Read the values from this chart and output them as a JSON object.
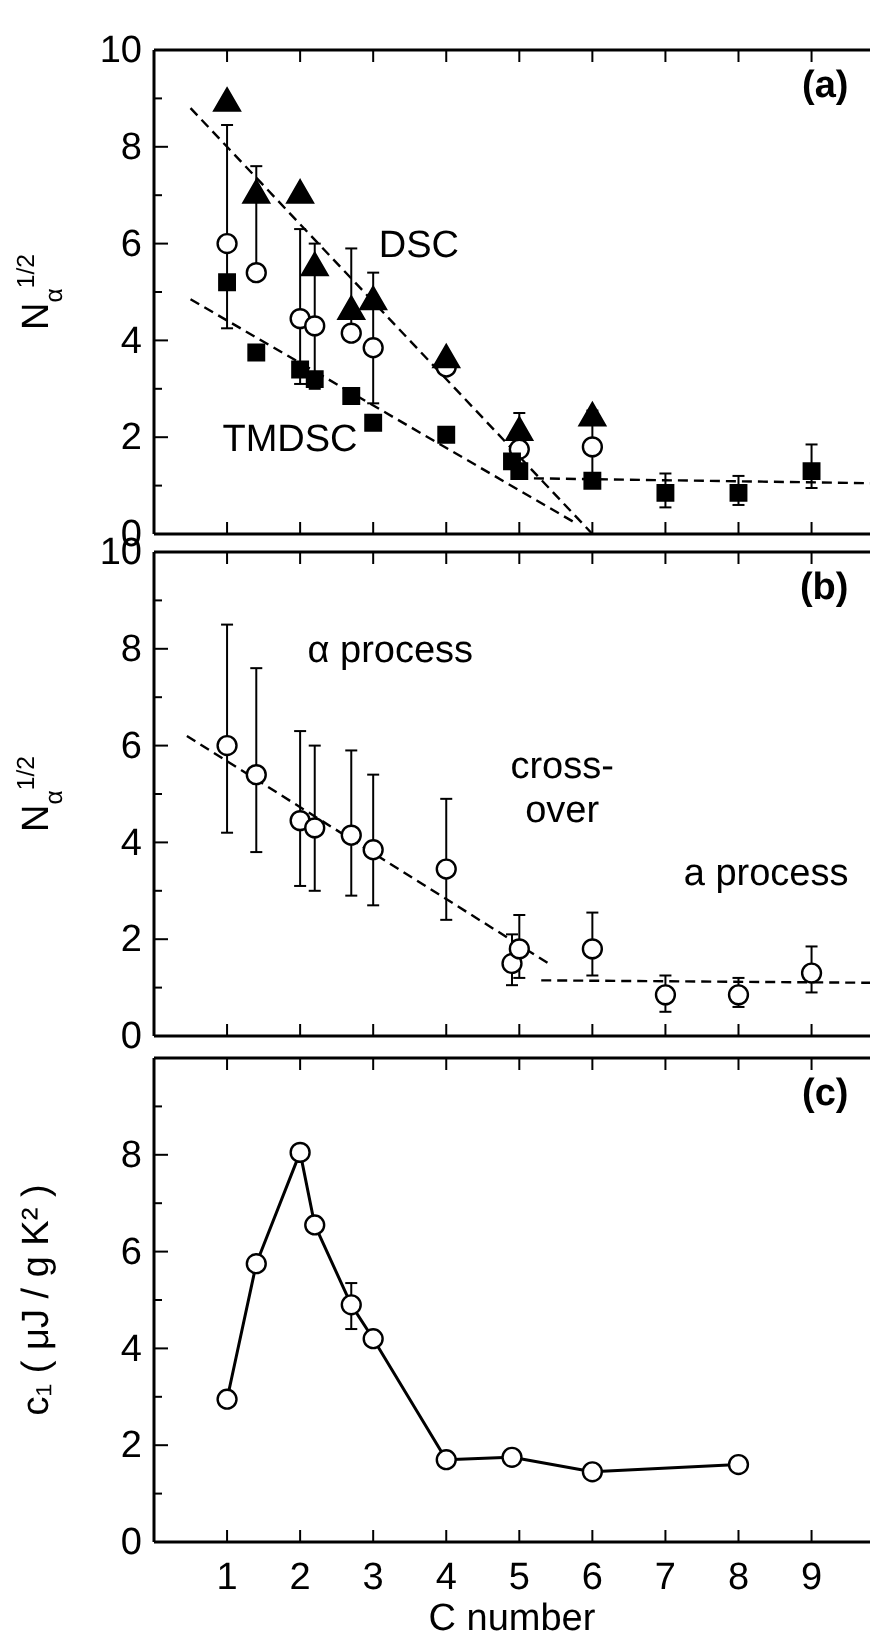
{
  "chart_data": [
    {
      "type": "scatter",
      "ylabel": "N$_{α}$$^{1/2}$",
      "xlim": [
        0,
        9.8
      ],
      "xticks": [
        1,
        2,
        3,
        4,
        5,
        6,
        7,
        8,
        9
      ],
      "ylim": [
        0,
        10
      ],
      "yticks": [
        0,
        {
          "value": 1,
          "label": null
        },
        2,
        {
          "value": 3,
          "label": null
        },
        4,
        {
          "value": 5,
          "label": null
        },
        6,
        {
          "value": 7,
          "label": null
        },
        8,
        {
          "value": 9,
          "label": null
        },
        10
      ],
      "tick_labels": "y",
      "annotations": [
        "(a)",
        "DSC",
        "TMDSC"
      ],
      "series": [
        {
          "type": "line",
          "line_style": "dashed",
          "marker": "none",
          "color": "#000000",
          "x": [
            0.5,
            6
          ],
          "values": [
            8.8,
            0
          ]
        },
        {
          "type": "line",
          "line_style": "dashed",
          "marker": "none",
          "color": "#000000",
          "x": [
            0.5,
            5.8
          ],
          "values": [
            4.85,
            0.2
          ]
        },
        {
          "type": "line",
          "line_style": "dashed",
          "marker": "none",
          "color": "#000000",
          "x": [
            5.2,
            9.8
          ],
          "values": [
            1.15,
            1.05
          ]
        },
        {
          "marker": "circle",
          "color": "#000000",
          "x": [
            1,
            1.4,
            2,
            2.2,
            2.7,
            3,
            4,
            5,
            6
          ],
          "values": [
            6.0,
            5.4,
            4.45,
            4.3,
            4.15,
            3.85,
            3.45,
            1.75,
            1.8
          ],
          "errors": [
            [
              4.25,
              8.45
            ],
            [
              5.4,
              7.6
            ],
            [
              3.1,
              6.3
            ],
            [
              3.0,
              6.0
            ],
            [
              4.15,
              5.9
            ],
            [
              2.7,
              5.4
            ],
            null,
            [
              1.2,
              2.5
            ],
            [
              1.25,
              2.55
            ]
          ]
        },
        {
          "marker": "square",
          "color": "#000000",
          "x": [
            1,
            1.4,
            2,
            2.2,
            2.7,
            3,
            4,
            4.9,
            5,
            6,
            7,
            8,
            9
          ],
          "values": [
            5.2,
            3.75,
            3.4,
            3.2,
            2.85,
            2.3,
            2.05,
            1.5,
            1.3,
            1.1,
            0.85,
            0.85,
            1.3
          ],
          "errors": [
            null,
            null,
            null,
            null,
            null,
            null,
            null,
            null,
            null,
            null,
            [
              0.55,
              1.25
            ],
            [
              0.6,
              1.2
            ],
            [
              0.95,
              1.85
            ]
          ]
        },
        {
          "marker": "triangle",
          "color": "#000000",
          "x": [
            1,
            1.4,
            2,
            2.2,
            2.7,
            3,
            4,
            5,
            6
          ],
          "values": [
            8.9,
            7.0,
            7.0,
            5.5,
            4.6,
            4.8,
            3.6,
            2.1,
            2.4
          ]
        }
      ]
    },
    {
      "type": "scatter",
      "ylabel": "N$_{α}$$^{1/2}$",
      "xlim": [
        0,
        9.8
      ],
      "xticks": [
        1,
        2,
        3,
        4,
        5,
        6,
        7,
        8,
        9
      ],
      "ylim": [
        0,
        10
      ],
      "yticks": [
        0,
        {
          "value": 1,
          "label": null
        },
        2,
        {
          "value": 3,
          "label": null
        },
        4,
        {
          "value": 5,
          "label": null
        },
        6,
        {
          "value": 7,
          "label": null
        },
        8,
        {
          "value": 9,
          "label": null
        },
        10
      ],
      "tick_labels": "y",
      "annotations": [
        "(b)",
        "α process",
        "cross-\nover",
        "a process"
      ],
      "series": [
        {
          "type": "line",
          "line_style": "dashed",
          "marker": "none",
          "color": "#000000",
          "x": [
            0.45,
            5.4
          ],
          "values": [
            6.2,
            1.5
          ]
        },
        {
          "type": "line",
          "line_style": "dashed",
          "marker": "none",
          "color": "#000000",
          "x": [
            5.3,
            9.8
          ],
          "values": [
            1.15,
            1.1
          ]
        },
        {
          "marker": "circle",
          "color": "#000000",
          "x": [
            1,
            1.4,
            2,
            2.2,
            2.7,
            3,
            4,
            4.9,
            5,
            6,
            7,
            8,
            9
          ],
          "values": [
            6.0,
            5.4,
            4.45,
            4.3,
            4.15,
            3.85,
            3.45,
            1.5,
            1.8,
            1.8,
            0.85,
            0.85,
            1.3
          ],
          "errors": [
            [
              4.2,
              8.5
            ],
            [
              3.8,
              7.6
            ],
            [
              3.1,
              6.3
            ],
            [
              3.0,
              6.0
            ],
            [
              2.9,
              5.9
            ],
            [
              2.7,
              5.4
            ],
            [
              2.4,
              4.9
            ],
            [
              1.05,
              2.1
            ],
            [
              1.2,
              2.5
            ],
            [
              1.25,
              2.55
            ],
            [
              0.5,
              1.25
            ],
            [
              0.6,
              1.2
            ],
            [
              0.9,
              1.85
            ]
          ]
        }
      ]
    },
    {
      "type": "line",
      "ylabel": "c₁ ( μJ / g K² )",
      "xlabel": "C  number",
      "xlim": [
        0,
        9.8
      ],
      "xticks": [
        1,
        2,
        3,
        4,
        5,
        6,
        7,
        8,
        9
      ],
      "ylim": [
        0,
        10
      ],
      "yticks": [
        0,
        {
          "value": 1,
          "label": null
        },
        2,
        {
          "value": 3,
          "label": null
        },
        4,
        {
          "value": 5,
          "label": null
        },
        6,
        {
          "value": 7,
          "label": null
        },
        8,
        {
          "value": 9,
          "label": null
        },
        {
          "value": 10,
          "label": null
        }
      ],
      "annotations": [
        "(c)"
      ],
      "series": [
        {
          "line_style": "solid",
          "marker": "circle",
          "color": "#000000",
          "x": [
            1,
            1.4,
            2,
            2.2,
            2.7,
            3,
            4,
            4.9,
            6,
            8
          ],
          "values": [
            2.95,
            5.75,
            8.05,
            6.55,
            4.9,
            4.2,
            1.7,
            1.75,
            1.45,
            1.6
          ],
          "errors": [
            null,
            null,
            null,
            null,
            [
              4.4,
              5.35
            ],
            null,
            null,
            null,
            null,
            null
          ]
        }
      ]
    }
  ]
}
